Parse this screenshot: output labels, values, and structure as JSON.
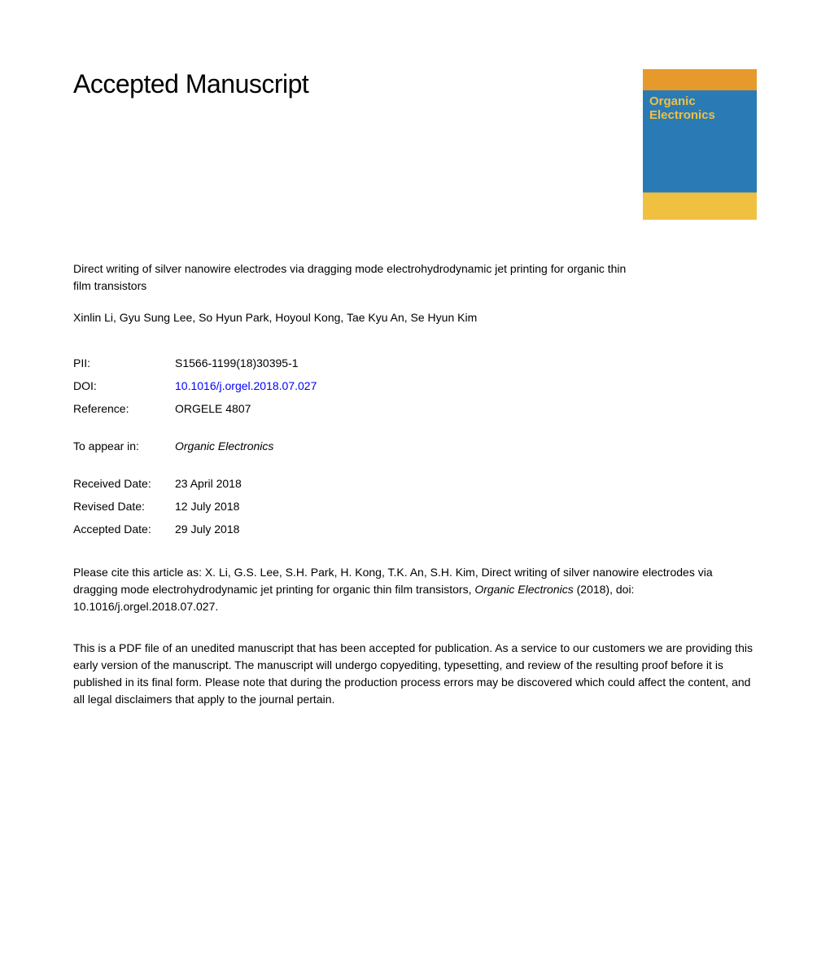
{
  "header": {
    "title": "Accepted Manuscript"
  },
  "journalCover": {
    "title": "Organic\nElectronics",
    "subtitle": ""
  },
  "article": {
    "title": "Direct writing of silver nanowire electrodes via dragging mode electrohydrodynamic jet printing for organic thin film transistors",
    "authors": "Xinlin Li, Gyu Sung Lee, So Hyun Park, Hoyoul Kong, Tae Kyu An, Se Hyun Kim"
  },
  "metadata": {
    "piiLabel": "PII:",
    "piiValue": "S1566-1199(18)30395-1",
    "doiLabel": "DOI:",
    "doiValue": "10.1016/j.orgel.2018.07.027",
    "referenceLabel": "Reference:",
    "referenceValue": "ORGELE 4807",
    "toAppearLabel": "To appear in:",
    "toAppearValue": "Organic Electronics",
    "receivedDateLabel": "Received Date:",
    "receivedDateValue": "23 April 2018",
    "revisedDateLabel": "Revised Date:",
    "revisedDateValue": "12 July 2018",
    "acceptedDateLabel": "Accepted Date:",
    "acceptedDateValue": "29 July 2018"
  },
  "citation": {
    "prefix": "Please cite this article as: X. Li, G.S. Lee, S.H. Park, H. Kong, T.K. An, S.H. Kim, Direct writing of silver nanowire electrodes via dragging mode electrohydrodynamic jet printing for organic thin film transistors, ",
    "journal": "Organic Electronics",
    "suffix": " (2018), doi: 10.1016/j.orgel.2018.07.027."
  },
  "disclaimer": "This is a PDF file of an unedited manuscript that has been accepted for publication. As a service to our customers we are providing this early version of the manuscript. The manuscript will undergo copyediting, typesetting, and review of the resulting proof before it is published in its final form. Please note that during the production process errors may be discovered which could affect the content, and all legal disclaimers that apply to the journal pertain.",
  "styling": {
    "pageWidth": 1020,
    "pageHeight": 1182,
    "backgroundColor": "#ffffff",
    "textColor": "#000000",
    "linkColor": "#0000ff",
    "titleFontSize": 32,
    "bodyFontSize": 14,
    "fontFamily": "Arial, Helvetica, sans-serif",
    "coverColors": {
      "top": "#e69a2b",
      "middle": "#2a7bb5",
      "bottom": "#f0c040",
      "titleColor": "#f0c040"
    }
  }
}
